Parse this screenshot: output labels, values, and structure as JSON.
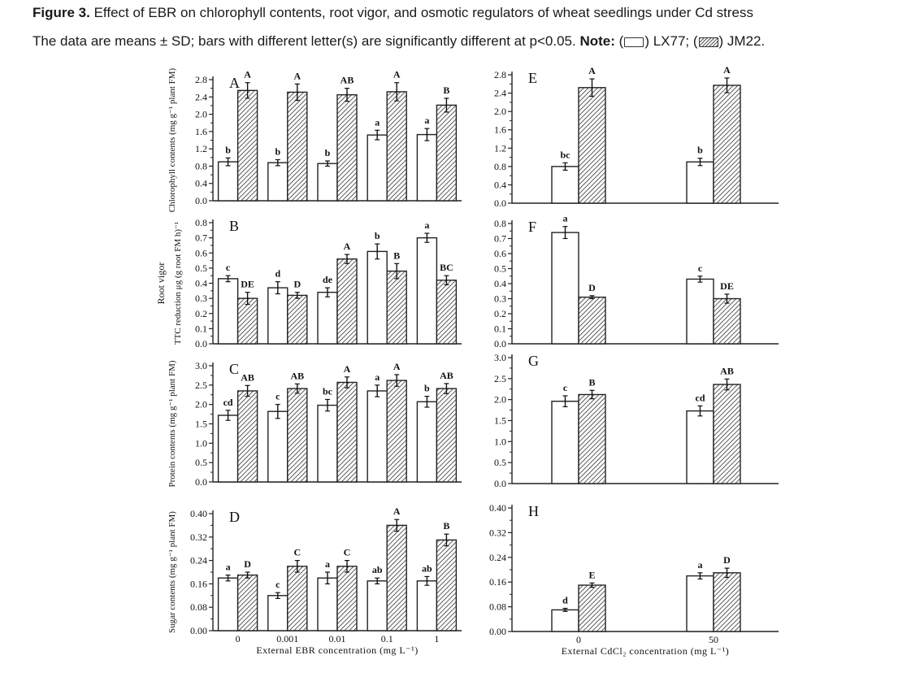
{
  "caption": {
    "figure_label": "Figure 3.",
    "title": "Effect of EBR on chlorophyll contents, root vigor, and osmotic regulators of wheat seedlings under Cd stress",
    "line2_text": "The data are means ± SD; bars with different letter(s) are significantly different at p<0.05.",
    "note_label": "Note:",
    "legend_open": "(",
    "legend_lx77": ") LX77; (",
    "legend_jm22": ") JM22."
  },
  "series_names": [
    "LX77",
    "JM22"
  ],
  "colors": {
    "lx77_fill": "#ffffff",
    "jm22_hatch": "#333333",
    "axis": "#222222"
  },
  "chart_data": [
    {
      "type": "bar",
      "panel": "A",
      "ylabel": "Chlorophyll contents (mg g⁻¹ plant FM)",
      "categories": [
        "0",
        "0.001",
        "0.01",
        "0.1",
        "1"
      ],
      "ylim": [
        0,
        2.8
      ],
      "yticks": [
        "0.0",
        "0.4",
        "0.8",
        "1.2",
        "1.6",
        "2.0",
        "2.4",
        "2.8"
      ],
      "series": [
        {
          "name": "LX77",
          "values": [
            0.9,
            0.88,
            0.86,
            1.52,
            1.53
          ],
          "errors": [
            0.09,
            0.07,
            0.06,
            0.11,
            0.14
          ],
          "letters": [
            "b",
            "b",
            "b",
            "a",
            "a"
          ]
        },
        {
          "name": "JM22",
          "values": [
            2.55,
            2.51,
            2.45,
            2.52,
            2.21
          ],
          "errors": [
            0.18,
            0.19,
            0.15,
            0.21,
            0.16
          ],
          "letters": [
            "A",
            "A",
            "AB",
            "A",
            "B"
          ]
        }
      ]
    },
    {
      "type": "bar",
      "panel": "B",
      "ylabel": "TTC reduction μg (g root FM h)⁻¹",
      "ylabel_outer": "Root vigor",
      "categories": [
        "0",
        "0.001",
        "0.01",
        "0.1",
        "1"
      ],
      "ylim": [
        0,
        0.8
      ],
      "yticks": [
        "0.0",
        "0.1",
        "0.2",
        "0.3",
        "0.4",
        "0.5",
        "0.6",
        "0.7",
        "0.8"
      ],
      "series": [
        {
          "name": "LX77",
          "values": [
            0.43,
            0.37,
            0.34,
            0.61,
            0.7
          ],
          "errors": [
            0.02,
            0.04,
            0.03,
            0.05,
            0.03
          ],
          "letters": [
            "c",
            "d",
            "de",
            "b",
            "a"
          ]
        },
        {
          "name": "JM22",
          "values": [
            0.3,
            0.32,
            0.56,
            0.48,
            0.42
          ],
          "errors": [
            0.04,
            0.02,
            0.03,
            0.05,
            0.03
          ],
          "letters": [
            "DE",
            "D",
            "A",
            "B",
            "BC"
          ]
        }
      ]
    },
    {
      "type": "bar",
      "panel": "C",
      "ylabel": "Protein contents (mg g⁻¹ plant FM)",
      "categories": [
        "0",
        "0.001",
        "0.01",
        "0.1",
        "1"
      ],
      "ylim": [
        0,
        3.0
      ],
      "yticks": [
        "0.0",
        "0.5",
        "1.0",
        "1.5",
        "2.0",
        "2.5",
        "3.0"
      ],
      "series": [
        {
          "name": "LX77",
          "values": [
            1.72,
            1.82,
            1.98,
            2.35,
            2.07
          ],
          "errors": [
            0.13,
            0.18,
            0.15,
            0.15,
            0.14
          ],
          "letters": [
            "cd",
            "c",
            "bc",
            "a",
            "b"
          ]
        },
        {
          "name": "JM22",
          "values": [
            2.35,
            2.41,
            2.57,
            2.62,
            2.41
          ],
          "errors": [
            0.14,
            0.12,
            0.14,
            0.15,
            0.13
          ],
          "letters": [
            "AB",
            "AB",
            "A",
            "A",
            "AB"
          ]
        }
      ]
    },
    {
      "type": "bar",
      "panel": "D",
      "ylabel": "Sugar contents (mg g⁻¹ plant FM)",
      "xlabel": "External EBR concentration (mg L⁻¹)",
      "categories": [
        "0",
        "0.001",
        "0.01",
        "0.1",
        "1"
      ],
      "ylim": [
        0,
        0.4
      ],
      "yticks": [
        "0.00",
        "0.08",
        "0.16",
        "0.24",
        "0.32",
        "0.40"
      ],
      "series": [
        {
          "name": "LX77",
          "values": [
            0.18,
            0.12,
            0.18,
            0.17,
            0.17
          ],
          "errors": [
            0.01,
            0.01,
            0.02,
            0.01,
            0.015
          ],
          "letters": [
            "a",
            "c",
            "a",
            "ab",
            "ab"
          ]
        },
        {
          "name": "JM22",
          "values": [
            0.19,
            0.22,
            0.22,
            0.36,
            0.31
          ],
          "errors": [
            0.01,
            0.02,
            0.02,
            0.02,
            0.02
          ],
          "letters": [
            "D",
            "C",
            "C",
            "A",
            "B"
          ]
        }
      ]
    },
    {
      "type": "bar",
      "panel": "E",
      "categories": [
        "0",
        "50"
      ],
      "ylim": [
        0,
        2.8
      ],
      "yticks": [
        "0.0",
        "0.4",
        "0.8",
        "1.2",
        "1.6",
        "2.0",
        "2.4",
        "2.8"
      ],
      "series": [
        {
          "name": "LX77",
          "values": [
            0.8,
            0.9
          ],
          "errors": [
            0.08,
            0.08
          ],
          "letters": [
            "bc",
            "b"
          ]
        },
        {
          "name": "JM22",
          "values": [
            2.52,
            2.57
          ],
          "errors": [
            0.19,
            0.16
          ],
          "letters": [
            "A",
            "A"
          ]
        }
      ]
    },
    {
      "type": "bar",
      "panel": "F",
      "categories": [
        "0",
        "50"
      ],
      "ylim": [
        0,
        0.8
      ],
      "yticks": [
        "0.0",
        "0.1",
        "0.2",
        "0.3",
        "0.4",
        "0.5",
        "0.6",
        "0.7",
        "0.8"
      ],
      "series": [
        {
          "name": "LX77",
          "values": [
            0.74,
            0.43
          ],
          "errors": [
            0.04,
            0.02
          ],
          "letters": [
            "a",
            "c"
          ]
        },
        {
          "name": "JM22",
          "values": [
            0.31,
            0.3
          ],
          "errors": [
            0.01,
            0.03
          ],
          "letters": [
            "D",
            "DE"
          ]
        }
      ]
    },
    {
      "type": "bar",
      "panel": "G",
      "categories": [
        "0",
        "50"
      ],
      "ylim": [
        0,
        3.0
      ],
      "yticks": [
        "0.0",
        "0.5",
        "1.0",
        "1.5",
        "2.0",
        "2.5",
        "3.0"
      ],
      "series": [
        {
          "name": "LX77",
          "values": [
            1.96,
            1.73
          ],
          "errors": [
            0.13,
            0.12
          ],
          "letters": [
            "c",
            "cd"
          ]
        },
        {
          "name": "JM22",
          "values": [
            2.12,
            2.36
          ],
          "errors": [
            0.1,
            0.13
          ],
          "letters": [
            "B",
            "AB"
          ]
        }
      ]
    },
    {
      "type": "bar",
      "panel": "H",
      "xlabel": "External CdCl₂ concentration (mg L⁻¹)",
      "categories": [
        "0",
        "50"
      ],
      "ylim": [
        0,
        0.4
      ],
      "yticks": [
        "0.00",
        "0.08",
        "0.16",
        "0.24",
        "0.32",
        "0.40"
      ],
      "series": [
        {
          "name": "LX77",
          "values": [
            0.07,
            0.18
          ],
          "errors": [
            0.005,
            0.01
          ],
          "letters": [
            "d",
            "a"
          ]
        },
        {
          "name": "JM22",
          "values": [
            0.15,
            0.19
          ],
          "errors": [
            0.007,
            0.015
          ],
          "letters": [
            "E",
            "D"
          ]
        }
      ]
    }
  ]
}
